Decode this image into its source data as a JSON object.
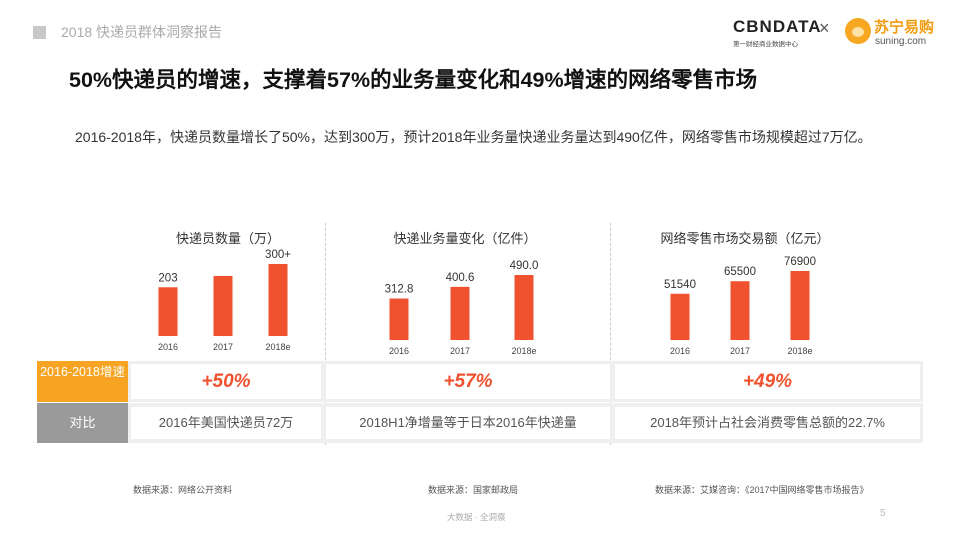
{
  "header": {
    "report_title": "2018 快递员群体洞察报告",
    "cbn_logo": "CBNDATA",
    "cbn_sub": "第一财经商业数据中心",
    "cross": "×",
    "suning_cn": "苏宁易购",
    "suning_en": "suning.com"
  },
  "main_title": "50%快递员的增速，支撑着57%的业务量变化和49%增速的网络零售市场",
  "intro": "2016-2018年，快递员数量增长了50%，达到300万，预计2018年业务量快递业务量达到490亿件，网络零售市场规模超过7万亿。",
  "chart_data": [
    {
      "type": "bar",
      "title": "快递员数量（万）",
      "categories": [
        "2016",
        "2017",
        "2018e"
      ],
      "values": [
        203,
        250,
        300
      ],
      "labels": [
        "203",
        "",
        "300+"
      ],
      "color": "#f0522f"
    },
    {
      "type": "bar",
      "title": "快递业务量变化（亿件）",
      "categories": [
        "2016",
        "2017",
        "2018e"
      ],
      "values": [
        312.8,
        400.6,
        490.0
      ],
      "labels": [
        "312.8",
        "400.6",
        "490.0"
      ],
      "color": "#f0522f"
    },
    {
      "type": "bar",
      "title": "网络零售市场交易额（亿元）",
      "categories": [
        "2016",
        "2017",
        "2018e"
      ],
      "values": [
        51540,
        65500,
        76900
      ],
      "labels": [
        "51540",
        "65500",
        "76900"
      ],
      "color": "#f0522f"
    }
  ],
  "table": {
    "row1_label": "2016-2018增速",
    "row2_label": "对比",
    "growth": [
      "+50%",
      "+57%",
      "+49%"
    ],
    "comparison": [
      "2016年美国快递员72万",
      "2018H1净增量等于日本2016年快递量",
      "2018年预计占社会消费零售总额的22.7%"
    ]
  },
  "sources": [
    "数据来源：网络公开资料",
    "数据来源：国家邮政局",
    "数据来源：艾媒咨询：《2017中国网络零售市场报告》"
  ],
  "footer": "大数据 · 全洞察",
  "page_number": "5"
}
